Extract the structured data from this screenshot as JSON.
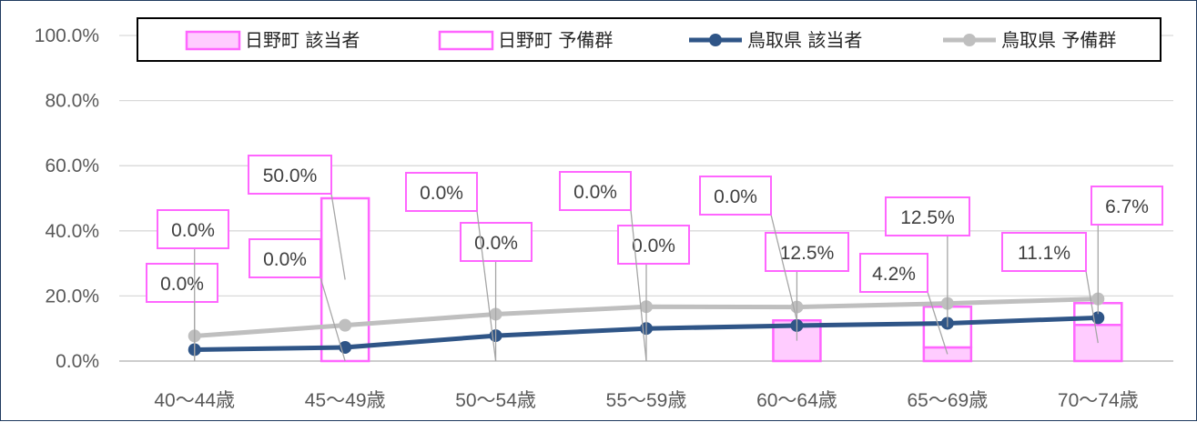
{
  "chart_data": {
    "type": "bar",
    "categories": [
      "40～44歳",
      "45～49歳",
      "50～54歳",
      "55～59歳",
      "60～64歳",
      "65～69歳",
      "70～74歳"
    ],
    "ylim": [
      0,
      100
    ],
    "y_ticks": [
      "0.0%",
      "20.0%",
      "40.0%",
      "60.0%",
      "80.0%",
      "100.0%"
    ],
    "grid": true,
    "legend_position": "top",
    "series": [
      {
        "name": "日野町 該当者",
        "kind": "bar",
        "color": "#ff66ff",
        "fill": "#ffccff",
        "values": [
          0.0,
          0.0,
          0.0,
          0.0,
          12.5,
          4.2,
          11.1
        ],
        "labels": [
          "0.0%",
          "0.0%",
          "0.0%",
          "0.0%",
          "12.5%",
          "4.2%",
          "11.1%"
        ]
      },
      {
        "name": "日野町 予備群",
        "kind": "bar",
        "color": "#ff66ff",
        "fill": "#ffffff",
        "values": [
          0.0,
          50.0,
          0.0,
          0.0,
          0.0,
          12.5,
          6.7
        ],
        "labels": [
          "0.0%",
          "50.0%",
          "0.0%",
          "0.0%",
          "0.0%",
          "12.5%",
          "6.7%"
        ]
      },
      {
        "name": "鳥取県 該当者",
        "kind": "line",
        "color": "#2f5587",
        "values": [
          3.5,
          4.2,
          7.8,
          10.0,
          10.9,
          11.6,
          13.3
        ]
      },
      {
        "name": "鳥取県 予備群",
        "kind": "line",
        "color": "#bfbfbf",
        "values": [
          7.7,
          11.0,
          14.4,
          16.7,
          16.6,
          17.7,
          19.1
        ]
      }
    ]
  }
}
